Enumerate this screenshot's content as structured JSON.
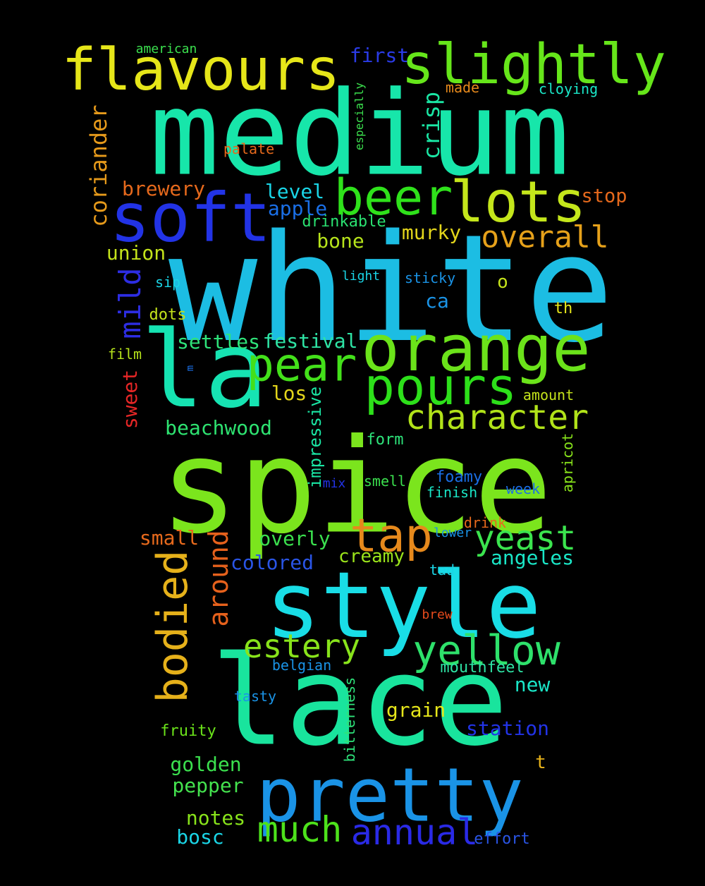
{
  "words": [
    {
      "text": "white",
      "color": "#1cbde3"
    },
    {
      "text": "spice",
      "color": "#7be51d"
    },
    {
      "text": "lace",
      "color": "#19e49d"
    },
    {
      "text": "medium",
      "color": "#17e6aa"
    },
    {
      "text": "style",
      "color": "#19dde6"
    },
    {
      "text": "la",
      "color": "#16e3b2"
    },
    {
      "text": "pretty",
      "color": "#1a93e6"
    },
    {
      "text": "orange",
      "color": "#6be31a"
    },
    {
      "text": "soft",
      "color": "#2233e6"
    },
    {
      "text": "flavours",
      "color": "#e6e619"
    },
    {
      "text": "lots",
      "color": "#c4e61b"
    },
    {
      "text": "slightly",
      "color": "#66e61a"
    },
    {
      "text": "pours",
      "color": "#2de01a"
    },
    {
      "text": "beer",
      "color": "#2fe21b"
    },
    {
      "text": "pear",
      "color": "#43e01a"
    },
    {
      "text": "tap",
      "color": "#e6891c"
    },
    {
      "text": "yellow",
      "color": "#2ee16b"
    },
    {
      "text": "character",
      "color": "#b1e319"
    },
    {
      "text": "bodied",
      "color": "#e6b11a"
    },
    {
      "text": "much",
      "color": "#4de21b"
    },
    {
      "text": "annual",
      "color": "#2a2ae6"
    },
    {
      "text": "estery",
      "color": "#88e31b"
    },
    {
      "text": "yeast",
      "color": "#3be44e"
    },
    {
      "text": "overall",
      "color": "#e6a11a"
    },
    {
      "text": "around",
      "color": "#e6611c"
    },
    {
      "text": "mild",
      "color": "#2d2de3"
    },
    {
      "text": "coriander",
      "color": "#e69a1b"
    },
    {
      "text": "crisp",
      "color": "#1ae6a4"
    },
    {
      "text": "impressive",
      "color": "#1ae6a4"
    },
    {
      "text": "bone",
      "color": "#b6e31b"
    },
    {
      "text": "level",
      "color": "#1ad5e6"
    },
    {
      "text": "apple",
      "color": "#1a6fe6"
    },
    {
      "text": "murky",
      "color": "#e3d51b"
    },
    {
      "text": "brewery",
      "color": "#e6691c"
    },
    {
      "text": "union",
      "color": "#c4e31b"
    },
    {
      "text": "first",
      "color": "#2a3be6"
    },
    {
      "text": "stop",
      "color": "#e6691c"
    },
    {
      "text": "drinkable",
      "color": "#2ae070"
    },
    {
      "text": "settles",
      "color": "#2ee37a"
    },
    {
      "text": "festival",
      "color": "#2ee3a4"
    },
    {
      "text": "beachwood",
      "color": "#2ee371"
    },
    {
      "text": "los",
      "color": "#e3d51b"
    },
    {
      "text": "sweet",
      "color": "#e62626"
    },
    {
      "text": "small",
      "color": "#e6691c"
    },
    {
      "text": "colored",
      "color": "#2a55e6"
    },
    {
      "text": "overly",
      "color": "#3be04e"
    },
    {
      "text": "creamy",
      "color": "#9ae31b"
    },
    {
      "text": "angeles",
      "color": "#1ae6c7"
    },
    {
      "text": "new",
      "color": "#1ae6c7"
    },
    {
      "text": "grain",
      "color": "#e6e61a"
    },
    {
      "text": "station",
      "color": "#2233e6"
    },
    {
      "text": "golden",
      "color": "#3be04e"
    },
    {
      "text": "pepper",
      "color": "#44e34e"
    },
    {
      "text": "notes",
      "color": "#88e31b"
    },
    {
      "text": "bosc",
      "color": "#1ad5e6"
    },
    {
      "text": "effort",
      "color": "#2a55e6"
    },
    {
      "text": "form",
      "color": "#2ee37a"
    },
    {
      "text": "foamy",
      "color": "#1a6fe6"
    },
    {
      "text": "finish",
      "color": "#1ae6c7"
    },
    {
      "text": "week",
      "color": "#1a6fe6"
    },
    {
      "text": "smell",
      "color": "#3be04e"
    },
    {
      "text": "mix",
      "color": "#2233e6"
    },
    {
      "text": "apricot",
      "color": "#88e31b"
    },
    {
      "text": "amount",
      "color": "#c4e31b"
    },
    {
      "text": "ca",
      "color": "#1a93e6"
    },
    {
      "text": "o",
      "color": "#c4e31b"
    },
    {
      "text": "th",
      "color": "#e6e61a"
    },
    {
      "text": "sticky",
      "color": "#1a93e6"
    },
    {
      "text": "light",
      "color": "#1ad5e6"
    },
    {
      "text": "sip",
      "color": "#1ad5e6"
    },
    {
      "text": "dots",
      "color": "#c4e31b"
    },
    {
      "text": "film",
      "color": "#b6e31b"
    },
    {
      "text": "m",
      "color": "#1a6fe6"
    },
    {
      "text": "american",
      "color": "#3be04e"
    },
    {
      "text": "made",
      "color": "#e6891c"
    },
    {
      "text": "cloying",
      "color": "#1ae6c7"
    },
    {
      "text": "especially",
      "color": "#3be04e"
    },
    {
      "text": "palate",
      "color": "#e6691c"
    },
    {
      "text": "drink",
      "color": "#e6691c"
    },
    {
      "text": "lower",
      "color": "#1a93e6"
    },
    {
      "text": "tad",
      "color": "#1ad5e6"
    },
    {
      "text": "brew",
      "color": "#e64a1c"
    },
    {
      "text": "belgian",
      "color": "#1a93e6"
    },
    {
      "text": "mouthfeel",
      "color": "#2ee3a4"
    },
    {
      "text": "bitterness",
      "color": "#2ee37a"
    },
    {
      "text": "tasty",
      "color": "#1a93e6"
    },
    {
      "text": "fruity",
      "color": "#6be31a"
    },
    {
      "text": "t",
      "color": "#e6b11a"
    }
  ]
}
